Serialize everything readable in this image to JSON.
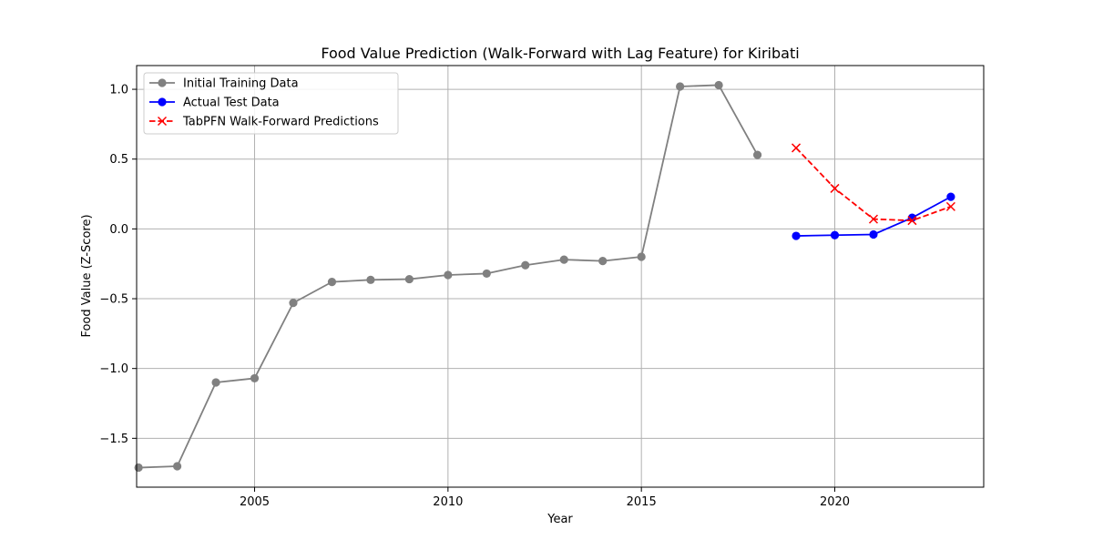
{
  "chart_data": {
    "type": "line",
    "title": "Food Value Prediction (Walk-Forward with Lag Feature) for Kiribati",
    "xlabel": "Year",
    "ylabel": "Food Value (Z-Score)",
    "xlim": [
      2001.95,
      2023.85
    ],
    "ylim": [
      -1.85,
      1.17
    ],
    "x_ticks": [
      2005,
      2010,
      2015,
      2020
    ],
    "x_tick_labels": [
      "2005",
      "2010",
      "2015",
      "2020"
    ],
    "y_ticks": [
      1.0,
      0.5,
      0.0,
      -0.5,
      -1.0,
      -1.5
    ],
    "y_tick_labels": [
      "1.0",
      "0.5",
      "0.0",
      "−0.5",
      "−1.0",
      "−1.5"
    ],
    "grid": true,
    "legend_position": "top-left",
    "series": [
      {
        "name": "Initial Training Data",
        "color": "#808080",
        "marker": "circle",
        "linestyle": "solid",
        "x": [
          2002,
          2003,
          2004,
          2005,
          2006,
          2007,
          2008,
          2009,
          2010,
          2011,
          2012,
          2013,
          2014,
          2015,
          2016,
          2017,
          2018
        ],
        "y": [
          -1.71,
          -1.7,
          -1.1,
          -1.07,
          -0.53,
          -0.38,
          -0.365,
          -0.36,
          -0.33,
          -0.32,
          -0.26,
          -0.22,
          -0.23,
          -0.2,
          1.02,
          1.03,
          0.53
        ]
      },
      {
        "name": "Actual Test Data",
        "color": "#0000ff",
        "marker": "circle",
        "linestyle": "solid",
        "x": [
          2019,
          2020,
          2021,
          2022,
          2023
        ],
        "y": [
          -0.05,
          -0.045,
          -0.04,
          0.08,
          0.23
        ]
      },
      {
        "name": "TabPFN Walk-Forward Predictions",
        "color": "#ff0000",
        "marker": "x",
        "linestyle": "dashed",
        "x": [
          2019,
          2020,
          2021,
          2022,
          2023
        ],
        "y": [
          0.58,
          0.29,
          0.07,
          0.06,
          0.16
        ]
      }
    ]
  }
}
